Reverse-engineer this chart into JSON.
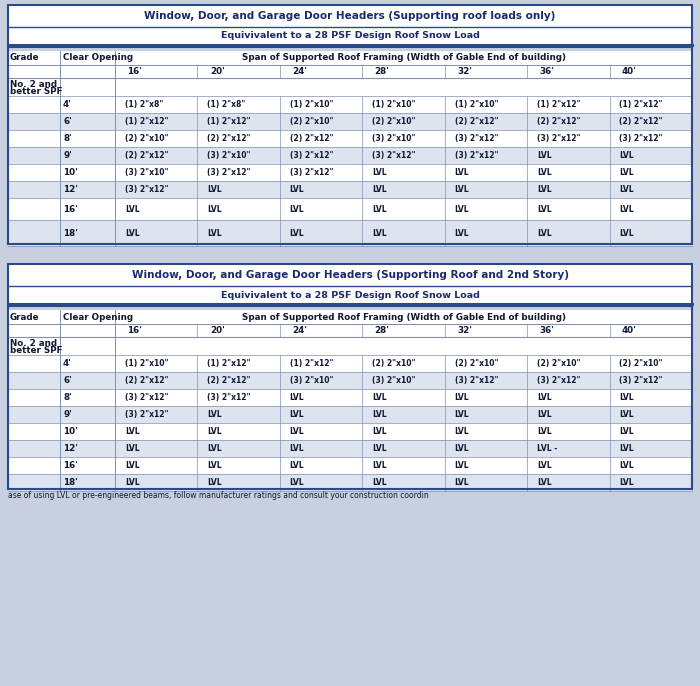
{
  "table1_title": "Window, Door, and Garage Door Headers (Supporting roof loads only)",
  "table1_subtitle": "Equivivalent to a 28 PSF Design Roof Snow Load",
  "table2_title": "Window, Door, and Garage Door Headers (Supporting Roof and 2nd Story)",
  "table2_subtitle": "Equivivalent to a 28 PSF Design Roof Snow Load",
  "footer": "ase of using LVL or pre-engineered beams, follow manufacturer ratings and consult your construction coordin",
  "col_headers": [
    "16'",
    "20'",
    "24'",
    "28'",
    "32'",
    "36'",
    "40'"
  ],
  "grade_label": "Grade",
  "clear_opening_label": "Clear Opening",
  "span_label": "Span of Supported Roof Framing (Width of Gable End of building)",
  "grade_value_line1": "No. 2 and",
  "grade_value_line2": "better SPF",
  "table1_rows": [
    [
      "4'",
      "(1) 2\"x8\"",
      "(1) 2\"x8\"",
      "(1) 2\"x10\"",
      "(1) 2\"x10\"",
      "(1) 2\"x10\"",
      "(1) 2\"x12\"",
      "(1) 2\"x12\""
    ],
    [
      "6'",
      "(1) 2\"x12\"",
      "(1) 2\"x12\"",
      "(2) 2\"x10\"",
      "(2) 2\"x10\"",
      "(2) 2\"x12\"",
      "(2) 2\"x12\"",
      "(2) 2\"x12\""
    ],
    [
      "8'",
      "(2) 2\"x10\"",
      "(2) 2\"x12\"",
      "(2) 2\"x12\"",
      "(3) 2\"x10\"",
      "(3) 2\"x12\"",
      "(3) 2\"x12\"",
      "(3) 2\"x12\""
    ],
    [
      "9'",
      "(2) 2\"x12\"",
      "(3) 2\"x10\"",
      "(3) 2\"x12\"",
      "(3) 2\"x12\"",
      "(3) 2\"x12\"",
      "LVL",
      "LVL"
    ],
    [
      "10'",
      "(3) 2\"x10\"",
      "(3) 2\"x12\"",
      "(3) 2\"x12\"",
      "LVL",
      "LVL",
      "LVL",
      "LVL"
    ],
    [
      "12'",
      "(3) 2\"x12\"",
      "LVL",
      "LVL",
      "LVL",
      "LVL",
      "LVL",
      "LVL"
    ],
    [
      "16'",
      "LVL",
      "LVL",
      "LVL",
      "LVL",
      "LVL",
      "LVL",
      "LVL"
    ],
    [
      "18'",
      "LVL",
      "LVL",
      "LVL",
      "LVL",
      "LVL",
      "LVL",
      "LVL"
    ]
  ],
  "table2_rows": [
    [
      "4'",
      "(1) 2\"x10\"",
      "(1) 2\"x12\"",
      "(1) 2\"x12\"",
      "(2) 2\"x10\"",
      "(2) 2\"x10\"",
      "(2) 2\"x10\"",
      "(2) 2\"x10\""
    ],
    [
      "6'",
      "(2) 2\"x12\"",
      "(2) 2\"x12\"",
      "(3) 2\"x10\"",
      "(3) 2\"x10\"",
      "(3) 2\"x12\"",
      "(3) 2\"x12\"",
      "(3) 2\"x12\""
    ],
    [
      "8'",
      "(3) 2\"x12\"",
      "(3) 2\"x12\"",
      "LVL",
      "LVL",
      "LVL",
      "LVL",
      "LVL"
    ],
    [
      "9'",
      "(3) 2\"x12\"",
      "LVL",
      "LVL",
      "LVL",
      "LVL",
      "LVL",
      "LVL"
    ],
    [
      "10'",
      "LVL",
      "LVL",
      "LVL",
      "LVL",
      "LVL",
      "LVL",
      "LVL"
    ],
    [
      "12'",
      "LVL",
      "LVL",
      "LVL",
      "LVL",
      "LVL",
      "LVL -",
      "LVL"
    ],
    [
      "16'",
      "LVL",
      "LVL",
      "LVL",
      "LVL",
      "LVL",
      "LVL",
      "LVL"
    ],
    [
      "18'",
      "LVL",
      "LVL",
      "LVL",
      "LVL",
      "LVL",
      "LVL",
      "LVL"
    ]
  ],
  "bg_color": "#c8d0e0",
  "table_white": "#ffffff",
  "border_dark": "#2a4a8a",
  "border_light": "#8090b0",
  "text_dark": "#101830",
  "text_blue": "#1a2a6a",
  "row_colors": [
    "#ffffff",
    "#dde4f0"
  ],
  "header_row_color": "#ffffff",
  "grade_row_color": "#e8edf5"
}
